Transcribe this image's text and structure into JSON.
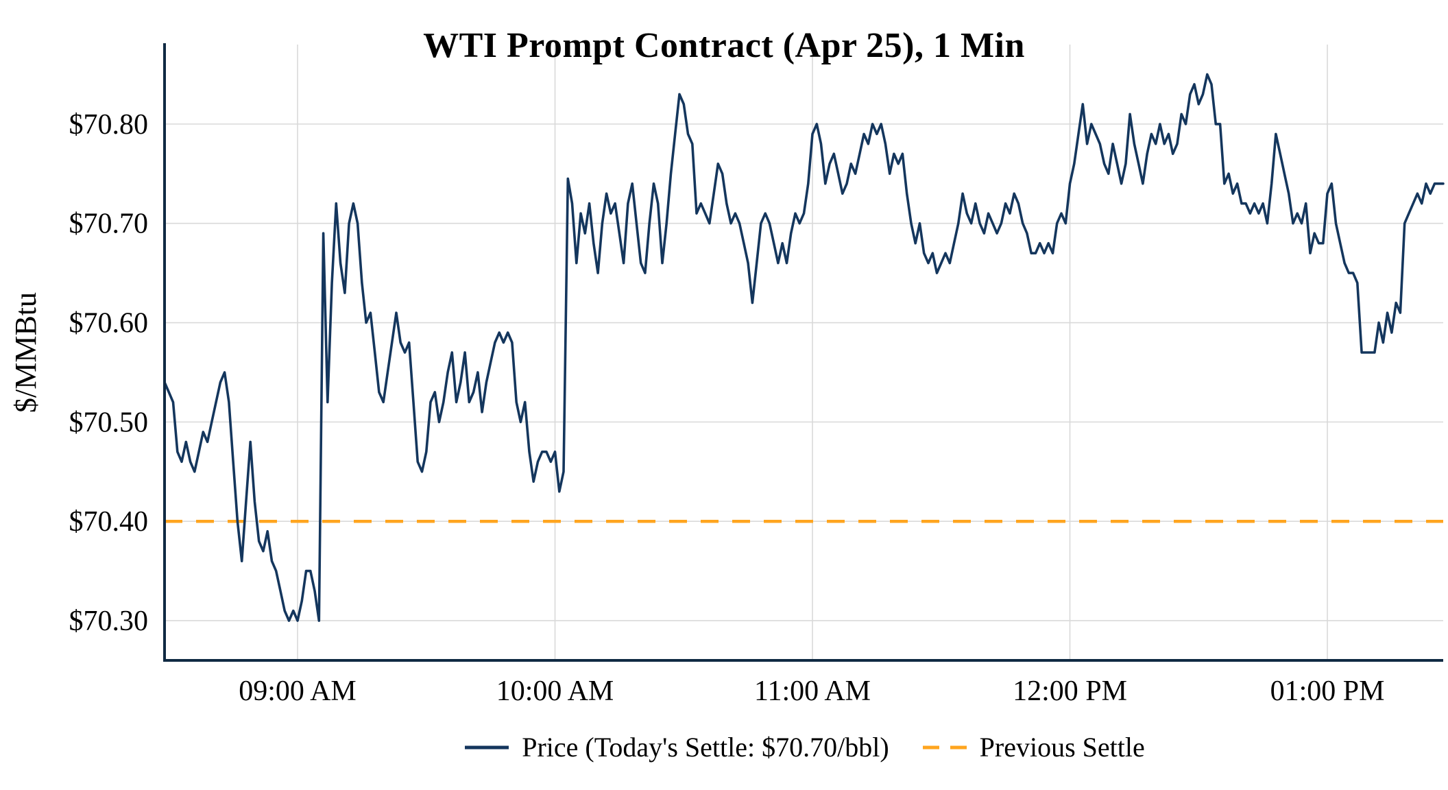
{
  "chart_data": {
    "type": "line",
    "title": "WTI Prompt Contract (Apr 25), 1 Min",
    "xlabel": "",
    "ylabel": "$/MMBtu",
    "ylim": [
      70.26,
      70.88
    ],
    "xlim_minutes_of_day": [
      509,
      807
    ],
    "grid": true,
    "legend_position": "bottom-center",
    "todays_settle_per_bbl": 70.7,
    "previous_settle": 70.4,
    "yticks": [
      {
        "value": 70.3,
        "label": "$70.30"
      },
      {
        "value": 70.4,
        "label": "$70.40"
      },
      {
        "value": 70.5,
        "label": "$70.50"
      },
      {
        "value": 70.6,
        "label": "$70.60"
      },
      {
        "value": 70.7,
        "label": "$70.70"
      },
      {
        "value": 70.8,
        "label": "$70.80"
      }
    ],
    "xticks": [
      {
        "minute_of_day": 540,
        "label": "09:00 AM"
      },
      {
        "minute_of_day": 600,
        "label": "10:00 AM"
      },
      {
        "minute_of_day": 660,
        "label": "11:00 AM"
      },
      {
        "minute_of_day": 720,
        "label": "12:00 PM"
      },
      {
        "minute_of_day": 780,
        "label": "01:00 PM"
      }
    ],
    "legend": [
      {
        "label": "Price (Today's Settle: $70.70/bbl)",
        "style": "solid",
        "color": "#14365d"
      },
      {
        "label": "Previous Settle",
        "style": "dashed",
        "color": "#ffa51f"
      }
    ],
    "colors": {
      "price_line": "#14365d",
      "previous_settle_line": "#ffa51f",
      "grid": "#d9d9d9",
      "axis": "#102a43",
      "text": "#000000",
      "background": "#ffffff"
    },
    "series": [
      {
        "name": "Price",
        "unit": "USD/bbl",
        "start_time": "08:29 AM",
        "start_minute_of_day": 509,
        "step_minutes": 1,
        "values": [
          70.54,
          70.53,
          70.52,
          70.47,
          70.46,
          70.48,
          70.46,
          70.45,
          70.47,
          70.49,
          70.48,
          70.5,
          70.52,
          70.54,
          70.55,
          70.52,
          70.46,
          70.4,
          70.36,
          70.42,
          70.48,
          70.42,
          70.38,
          70.37,
          70.39,
          70.36,
          70.35,
          70.33,
          70.31,
          70.3,
          70.31,
          70.3,
          70.32,
          70.35,
          70.35,
          70.33,
          70.3,
          70.69,
          70.52,
          70.64,
          70.72,
          70.66,
          70.63,
          70.7,
          70.72,
          70.7,
          70.64,
          70.6,
          70.61,
          70.57,
          70.53,
          70.52,
          70.55,
          70.58,
          70.61,
          70.58,
          70.57,
          70.58,
          70.52,
          70.46,
          70.45,
          70.47,
          70.52,
          70.53,
          70.5,
          70.52,
          70.55,
          70.57,
          70.52,
          70.54,
          70.57,
          70.52,
          70.53,
          70.55,
          70.51,
          70.54,
          70.56,
          70.58,
          70.59,
          70.58,
          70.59,
          70.58,
          70.52,
          70.5,
          70.52,
          70.47,
          70.44,
          70.46,
          70.47,
          70.47,
          70.46,
          70.47,
          70.43,
          70.45,
          70.745,
          70.72,
          70.66,
          70.71,
          70.69,
          70.72,
          70.68,
          70.65,
          70.7,
          70.73,
          70.71,
          70.72,
          70.69,
          70.66,
          70.72,
          70.74,
          70.7,
          70.66,
          70.65,
          70.7,
          70.74,
          70.72,
          70.66,
          70.7,
          70.75,
          70.79,
          70.83,
          70.82,
          70.79,
          70.78,
          70.71,
          70.72,
          70.71,
          70.7,
          70.73,
          70.76,
          70.75,
          70.72,
          70.7,
          70.71,
          70.7,
          70.68,
          70.66,
          70.62,
          70.66,
          70.7,
          70.71,
          70.7,
          70.68,
          70.66,
          70.68,
          70.66,
          70.69,
          70.71,
          70.7,
          70.71,
          70.74,
          70.79,
          70.8,
          70.78,
          70.74,
          70.76,
          70.77,
          70.75,
          70.73,
          70.74,
          70.76,
          70.75,
          70.77,
          70.79,
          70.78,
          70.8,
          70.79,
          70.8,
          70.78,
          70.75,
          70.77,
          70.76,
          70.77,
          70.73,
          70.7,
          70.68,
          70.7,
          70.67,
          70.66,
          70.67,
          70.65,
          70.66,
          70.67,
          70.66,
          70.68,
          70.7,
          70.73,
          70.71,
          70.7,
          70.72,
          70.7,
          70.69,
          70.71,
          70.7,
          70.69,
          70.7,
          70.72,
          70.71,
          70.73,
          70.72,
          70.7,
          70.69,
          70.67,
          70.67,
          70.68,
          70.67,
          70.68,
          70.67,
          70.7,
          70.71,
          70.7,
          70.74,
          70.76,
          70.79,
          70.82,
          70.78,
          70.8,
          70.79,
          70.78,
          70.76,
          70.75,
          70.78,
          70.76,
          70.74,
          70.76,
          70.81,
          70.78,
          70.76,
          70.74,
          70.77,
          70.79,
          70.78,
          70.8,
          70.78,
          70.79,
          70.77,
          70.78,
          70.81,
          70.8,
          70.83,
          70.84,
          70.82,
          70.83,
          70.85,
          70.84,
          70.8,
          70.8,
          70.74,
          70.75,
          70.73,
          70.74,
          70.72,
          70.72,
          70.71,
          70.72,
          70.71,
          70.72,
          70.7,
          70.74,
          70.79,
          70.77,
          70.75,
          70.73,
          70.7,
          70.71,
          70.7,
          70.72,
          70.67,
          70.69,
          70.68,
          70.68,
          70.73,
          70.74,
          70.7,
          70.68,
          70.66,
          70.65,
          70.65,
          70.64,
          70.57,
          70.57,
          70.57,
          70.57,
          70.6,
          70.58,
          70.61,
          70.59,
          70.62,
          70.61,
          70.7,
          70.71,
          70.72,
          70.73,
          70.72,
          70.74,
          70.73,
          70.74,
          70.74,
          70.74
        ]
      }
    ]
  }
}
